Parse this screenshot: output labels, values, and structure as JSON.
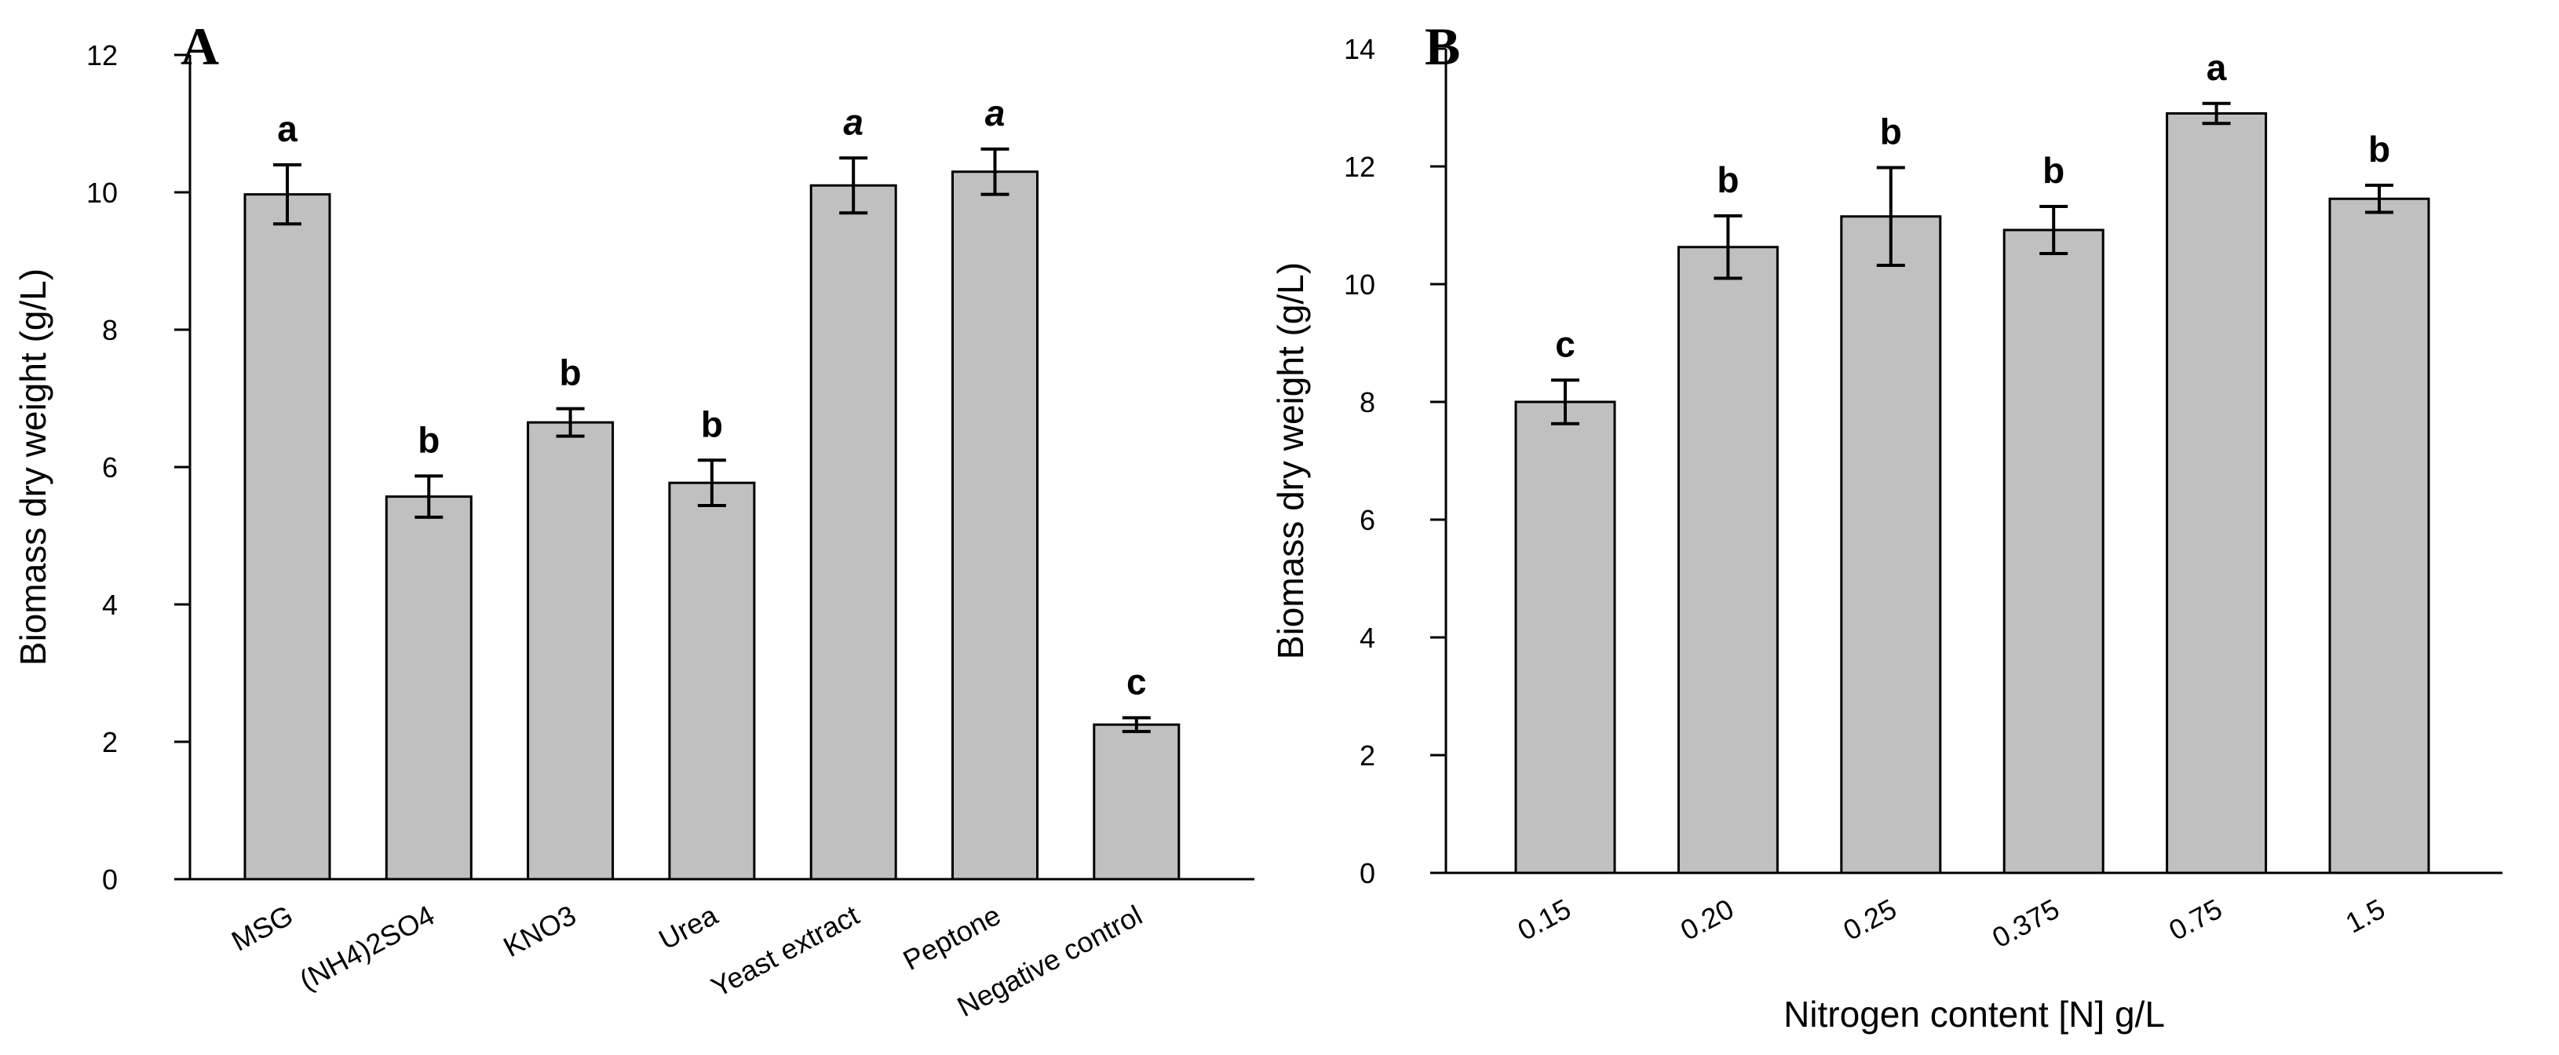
{
  "chart_data": [
    {
      "type": "bar",
      "panel_label": "A",
      "title": "",
      "xlabel": "",
      "ylabel": "Biomass dry weight (g/L)",
      "ylim": [
        0,
        12
      ],
      "yticks": [
        "0",
        "2",
        "4",
        "6",
        "8",
        "10",
        "12"
      ],
      "ytick_values": [
        0,
        2,
        4,
        6,
        8,
        10,
        12
      ],
      "categories": [
        "MSG",
        "(NH4)2SO4",
        "KNO3",
        "Urea",
        "Yeast extract",
        "Peptone",
        "Negative control"
      ],
      "values": [
        9.97,
        5.57,
        6.65,
        5.77,
        10.1,
        10.3,
        2.25
      ],
      "errors": [
        0.43,
        0.3,
        0.2,
        0.33,
        0.4,
        0.33,
        0.1
      ],
      "significance": [
        "a",
        "b",
        "b",
        "b",
        "a",
        "a",
        "c"
      ],
      "significance_italic": [
        false,
        false,
        false,
        false,
        true,
        true,
        false
      ],
      "xtick_rotation": "rotated"
    },
    {
      "type": "bar",
      "panel_label": "B",
      "title": "",
      "xlabel": "Nitrogen content [N] g/L",
      "ylabel": "Biomass dry weight (g/L)",
      "ylim": [
        0,
        14
      ],
      "yticks": [
        "0",
        "2",
        "4",
        "6",
        "8",
        "10",
        "12",
        "14"
      ],
      "ytick_values": [
        0,
        2,
        4,
        6,
        8,
        10,
        12,
        14
      ],
      "categories": [
        "0.15",
        "0.20",
        "0.25",
        "0.375",
        "0.75",
        "1.5"
      ],
      "values": [
        8.0,
        10.63,
        11.15,
        10.92,
        12.9,
        11.45
      ],
      "errors": [
        0.37,
        0.53,
        0.83,
        0.4,
        0.17,
        0.23
      ],
      "significance": [
        "c",
        "b",
        "b",
        "b",
        "a",
        "b"
      ],
      "significance_italic": [
        false,
        false,
        false,
        false,
        false,
        false
      ],
      "xtick_rotation": "rotated"
    }
  ]
}
